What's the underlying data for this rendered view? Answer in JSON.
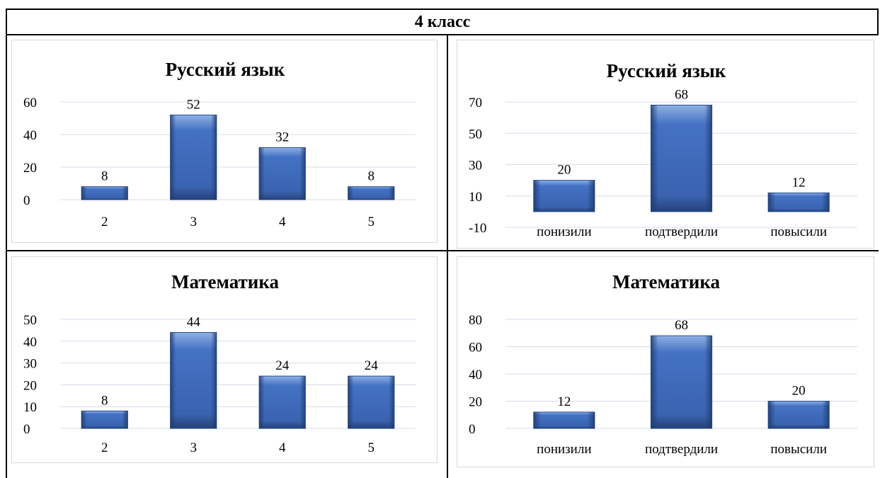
{
  "header": {
    "title": "4 класс"
  },
  "chart_data": [
    {
      "type": "bar",
      "title": "Русский язык",
      "categories": [
        "2",
        "3",
        "4",
        "5"
      ],
      "values": [
        8,
        52,
        32,
        8
      ],
      "yticks": [
        0,
        20,
        40,
        60
      ],
      "ylim": [
        0,
        60
      ],
      "grid": true,
      "bar_color": "#4472c4"
    },
    {
      "type": "bar",
      "title": "Русский язык",
      "categories": [
        "понизили",
        "подтвердили",
        "повысили"
      ],
      "values": [
        20,
        68,
        12
      ],
      "yticks": [
        -10,
        10,
        30,
        50,
        70
      ],
      "ylim": [
        -10,
        70
      ],
      "grid": true,
      "bar_color": "#4472c4"
    },
    {
      "type": "bar",
      "title": "Математика",
      "categories": [
        "2",
        "3",
        "4",
        "5"
      ],
      "values": [
        8,
        44,
        24,
        24
      ],
      "yticks": [
        0,
        10,
        20,
        30,
        40,
        50
      ],
      "ylim": [
        0,
        50
      ],
      "grid": true,
      "bar_color": "#4472c4"
    },
    {
      "type": "bar",
      "title": "Математика",
      "categories": [
        "понизили",
        "подтвердили",
        "повысили"
      ],
      "values": [
        12,
        68,
        20
      ],
      "yticks": [
        0,
        20,
        40,
        60,
        80
      ],
      "ylim": [
        0,
        80
      ],
      "grid": true,
      "bar_color": "#4472c4"
    }
  ]
}
